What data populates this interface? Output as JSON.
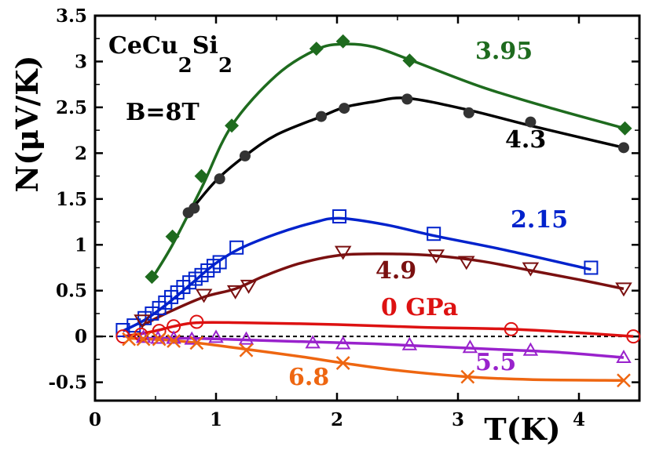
{
  "chart_data": {
    "type": "line",
    "title": "CeCu2Si2",
    "xlabel": "T(K)",
    "ylabel": "N(μV/K)",
    "xlim": [
      0,
      4.5
    ],
    "ylim": [
      -0.7,
      3.5
    ],
    "xticks": [
      0,
      1,
      2,
      3,
      4
    ],
    "xtick_labels": [
      "0",
      "1",
      "2",
      "3",
      "4"
    ],
    "yticks": [
      -0.5,
      0,
      0.5,
      1,
      1.5,
      2,
      2.5,
      3,
      3.5
    ],
    "ytick_labels": [
      "-0.5",
      "0",
      "0.5",
      "1",
      "1.5",
      "2",
      "2.5",
      "3",
      "3.5"
    ],
    "grid": false,
    "zero_line": true,
    "annotations": {
      "compound_main": "CeCu",
      "compound_sub1": "2",
      "compound_mid": "Si",
      "compound_sub2": "2",
      "field": "B=8T"
    },
    "series": [
      {
        "name": "3.95",
        "color": "#1e6b1e",
        "marker": "diamond",
        "x": [
          0.47,
          0.64,
          0.88,
          1.13,
          1.83,
          2.05,
          2.6,
          4.38
        ],
        "y": [
          0.65,
          1.09,
          1.75,
          2.3,
          3.14,
          3.22,
          3.01,
          2.27
        ],
        "curve_x": [
          0.47,
          0.64,
          0.88,
          1.13,
          1.5,
          1.83,
          2.05,
          2.3,
          2.6,
          3.2,
          3.8,
          4.38
        ],
        "curve_y": [
          0.63,
          1.0,
          1.62,
          2.3,
          2.85,
          3.13,
          3.19,
          3.16,
          3.02,
          2.72,
          2.48,
          2.27
        ]
      },
      {
        "name": "4.3",
        "color": "#000000",
        "marker": "circle",
        "x": [
          0.77,
          0.82,
          1.03,
          1.24,
          1.87,
          2.06,
          2.58,
          3.09,
          3.6,
          4.37
        ],
        "y": [
          1.35,
          1.4,
          1.72,
          1.97,
          2.4,
          2.49,
          2.59,
          2.44,
          2.34,
          2.06
        ],
        "curve_x": [
          0.77,
          1.0,
          1.24,
          1.5,
          1.87,
          2.06,
          2.3,
          2.58,
          3.09,
          3.6,
          4.37
        ],
        "curve_y": [
          1.34,
          1.7,
          1.97,
          2.2,
          2.4,
          2.5,
          2.56,
          2.6,
          2.47,
          2.3,
          2.06
        ]
      },
      {
        "name": "2.15",
        "color": "#0022cc",
        "marker": "square",
        "x": [
          0.23,
          0.32,
          0.41,
          0.47,
          0.53,
          0.58,
          0.63,
          0.68,
          0.73,
          0.78,
          0.83,
          0.88,
          0.93,
          0.98,
          1.03,
          1.17,
          2.02,
          2.8,
          4.1
        ],
        "y": [
          0.07,
          0.12,
          0.2,
          0.25,
          0.31,
          0.37,
          0.43,
          0.48,
          0.54,
          0.59,
          0.63,
          0.67,
          0.72,
          0.77,
          0.81,
          0.97,
          1.31,
          1.12,
          0.75
        ],
        "curve_x": [
          0.23,
          0.41,
          0.6,
          0.8,
          1.0,
          1.2,
          1.5,
          1.8,
          2.02,
          2.4,
          2.8,
          3.4,
          4.1
        ],
        "curve_y": [
          0.06,
          0.18,
          0.36,
          0.58,
          0.8,
          0.96,
          1.12,
          1.24,
          1.29,
          1.22,
          1.1,
          0.94,
          0.73
        ]
      },
      {
        "name": "4.9",
        "color": "#7a1010",
        "marker": "triangle-down",
        "x": [
          0.39,
          0.9,
          1.16,
          1.27,
          2.05,
          2.82,
          3.07,
          3.6,
          4.37
        ],
        "y": [
          0.17,
          0.45,
          0.49,
          0.55,
          0.92,
          0.88,
          0.81,
          0.74,
          0.52
        ],
        "curve_x": [
          0.39,
          0.6,
          0.9,
          1.16,
          1.4,
          1.7,
          2.05,
          2.5,
          2.82,
          3.2,
          3.6,
          4.0,
          4.37
        ],
        "curve_y": [
          0.12,
          0.26,
          0.43,
          0.52,
          0.66,
          0.8,
          0.89,
          0.9,
          0.88,
          0.82,
          0.72,
          0.62,
          0.52
        ]
      },
      {
        "name": "0 GPa",
        "color": "#dd1111",
        "marker": "circle-open",
        "x": [
          0.23,
          0.38,
          0.53,
          0.65,
          0.84,
          3.44,
          4.45
        ],
        "y": [
          0.0,
          0.02,
          0.06,
          0.11,
          0.16,
          0.08,
          0.0
        ],
        "curve_x": [
          0.23,
          0.38,
          0.53,
          0.65,
          0.84,
          1.2,
          2.0,
          2.7,
          3.44,
          4.0,
          4.45
        ],
        "curve_y": [
          0.0,
          0.03,
          0.07,
          0.11,
          0.15,
          0.15,
          0.13,
          0.1,
          0.08,
          0.04,
          0.0
        ]
      },
      {
        "name": "5.5",
        "color": "#9922cc",
        "marker": "triangle-up",
        "x": [
          0.4,
          0.52,
          0.65,
          0.8,
          1.0,
          1.25,
          1.8,
          2.05,
          2.6,
          3.1,
          3.6,
          4.37
        ],
        "y": [
          -0.01,
          -0.02,
          -0.02,
          -0.03,
          -0.01,
          -0.03,
          -0.07,
          -0.08,
          -0.09,
          -0.12,
          -0.15,
          -0.23
        ],
        "curve_x": [
          0.3,
          0.8,
          1.3,
          1.8,
          2.3,
          2.8,
          3.3,
          3.8,
          4.37
        ],
        "curve_y": [
          -0.02,
          -0.02,
          -0.04,
          -0.06,
          -0.08,
          -0.11,
          -0.14,
          -0.17,
          -0.23
        ]
      },
      {
        "name": "6.8",
        "color": "#ee6611",
        "marker": "x",
        "x": [
          0.28,
          0.4,
          0.53,
          0.65,
          0.84,
          1.25,
          2.05,
          3.08,
          4.37
        ],
        "y": [
          -0.03,
          -0.03,
          -0.03,
          -0.05,
          -0.07,
          -0.15,
          -0.29,
          -0.44,
          -0.48
        ],
        "curve_x": [
          0.28,
          0.6,
          0.84,
          1.25,
          1.7,
          2.05,
          2.5,
          3.08,
          3.6,
          4.37
        ],
        "curve_y": [
          -0.02,
          -0.04,
          -0.07,
          -0.14,
          -0.22,
          -0.29,
          -0.37,
          -0.44,
          -0.47,
          -0.48
        ]
      }
    ]
  }
}
